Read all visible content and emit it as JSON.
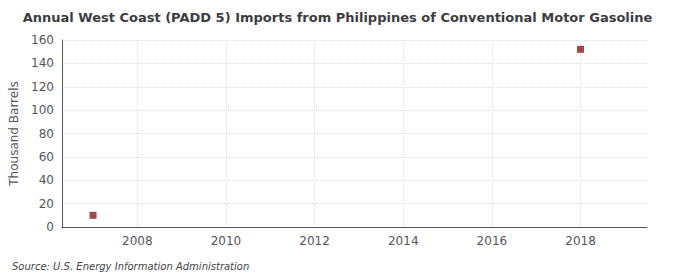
{
  "chart_data": {
    "type": "scatter",
    "title": "Annual West Coast (PADD 5) Imports from Philippines of Conventional Motor Gasoline",
    "ylabel": "Thousand Barrels",
    "annotations": [
      "Source: U.S. Energy Information Administration"
    ],
    "x": [
      2007,
      2018
    ],
    "values": [
      10,
      152
    ],
    "color": "#8b1a1a",
    "marker": "square",
    "xlim": [
      2006.3,
      2019.5
    ],
    "xticks": [
      2008,
      2010,
      2012,
      2014,
      2016,
      2018
    ],
    "ylim": [
      0,
      160
    ],
    "yticks": [
      0,
      20,
      40,
      60,
      80,
      100,
      120,
      140,
      160
    ],
    "grid": true
  }
}
